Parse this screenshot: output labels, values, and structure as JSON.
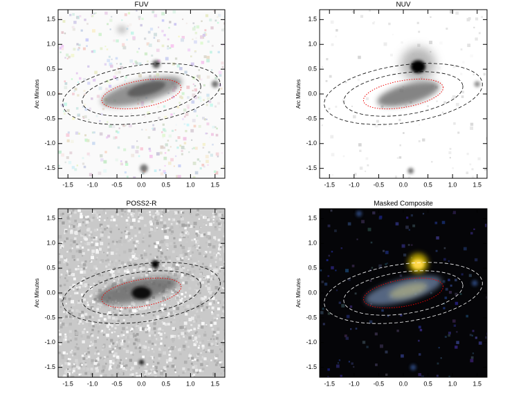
{
  "chart_data": [
    {
      "type": "image",
      "title": "FUV",
      "ylabel": "Arc Minutes",
      "xlim": [
        -1.7,
        1.7
      ],
      "ylim": [
        -1.7,
        1.7
      ],
      "xticks": [
        -1.5,
        {
          "value": -1,
          "label": "-1.0"
        },
        -0.5,
        {
          "value": 0,
          "label": "0.0"
        },
        0.5,
        {
          "value": 1,
          "label": "1.0"
        },
        1.5
      ],
      "yticks": [
        -1.5,
        {
          "value": -1,
          "label": "-1.0"
        },
        -0.5,
        {
          "value": 0,
          "label": "0.0"
        },
        0.5,
        {
          "value": 1,
          "label": "1.0"
        },
        1.5
      ]
    },
    {
      "type": "image",
      "title": "NUV",
      "ylabel": "Arc Minutes",
      "xlim": [
        -1.7,
        1.7
      ],
      "ylim": [
        -1.7,
        1.7
      ],
      "xticks": [
        -1.5,
        {
          "value": -1,
          "label": "-1.0"
        },
        -0.5,
        {
          "value": 0,
          "label": "0.0"
        },
        0.5,
        {
          "value": 1,
          "label": "1.0"
        },
        1.5
      ],
      "yticks": [
        -1.5,
        {
          "value": -1,
          "label": "-1.0"
        },
        -0.5,
        {
          "value": 0,
          "label": "0.0"
        },
        0.5,
        {
          "value": 1,
          "label": "1.0"
        },
        1.5
      ]
    },
    {
      "type": "image",
      "title": "POSS2-R",
      "ylabel": "Arc Minutes",
      "xlim": [
        -1.7,
        1.7
      ],
      "ylim": [
        -1.7,
        1.7
      ],
      "xticks": [
        -1.5,
        {
          "value": -1,
          "label": "-1.0"
        },
        -0.5,
        {
          "value": 0,
          "label": "0.0"
        },
        0.5,
        {
          "value": 1,
          "label": "1.0"
        },
        1.5
      ],
      "yticks": [
        -1.5,
        {
          "value": -1,
          "label": "-1.0"
        },
        -0.5,
        {
          "value": 0,
          "label": "0.0"
        },
        0.5,
        {
          "value": 1,
          "label": "1.0"
        },
        1.5
      ]
    },
    {
      "type": "image",
      "title": "Masked Composite",
      "ylabel": "Arc Minutes",
      "xlim": [
        -1.7,
        1.7
      ],
      "ylim": [
        -1.7,
        1.7
      ],
      "xticks": [
        -1.5,
        {
          "value": -1,
          "label": "-1.0"
        },
        -0.5,
        {
          "value": 0,
          "label": "0.0"
        },
        0.5,
        {
          "value": 1,
          "label": "1.0"
        },
        1.5
      ],
      "yticks": [
        -1.5,
        {
          "value": -1,
          "label": "-1.0"
        },
        -0.5,
        {
          "value": 0,
          "label": "0.0"
        },
        0.5,
        {
          "value": 1,
          "label": "1.0"
        },
        1.5
      ]
    }
  ]
}
